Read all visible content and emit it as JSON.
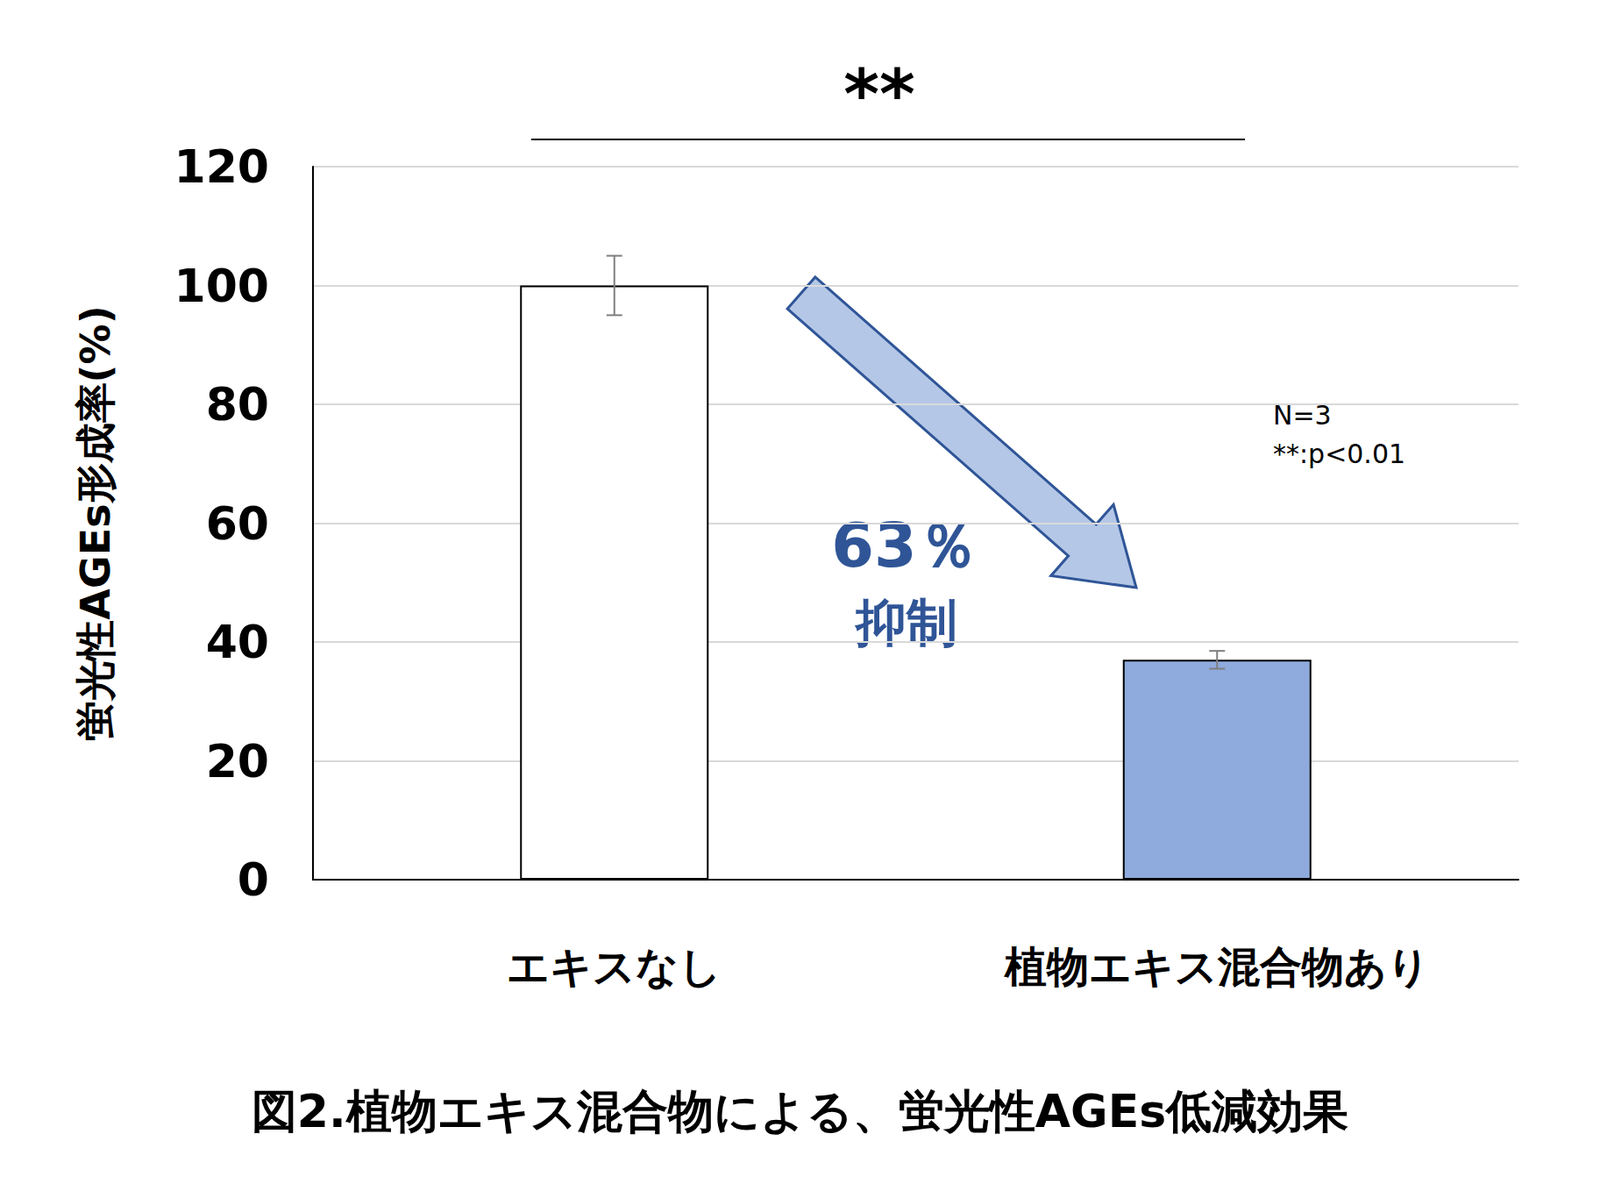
{
  "chart_data": {
    "type": "bar",
    "title": "図2.植物エキス混合物による、蛍光性AGEs低減効果",
    "y_label": "蛍光性AGEs形成率(%)",
    "categories": [
      "エキスなし",
      "植物エキス混合物あり"
    ],
    "values": [
      100,
      37
    ],
    "errors": [
      5,
      1.5
    ],
    "colors": [
      "#ffffff",
      "#8faadc"
    ],
    "ylim": [
      0,
      120
    ],
    "yticks": [
      0,
      20,
      40,
      60,
      80,
      100,
      120
    ],
    "grid": true,
    "annotations": {
      "significance": "**",
      "reduction": "63％",
      "reduction_label": "抑制",
      "notes": [
        "N=3",
        "**:p<0.01"
      ]
    }
  }
}
